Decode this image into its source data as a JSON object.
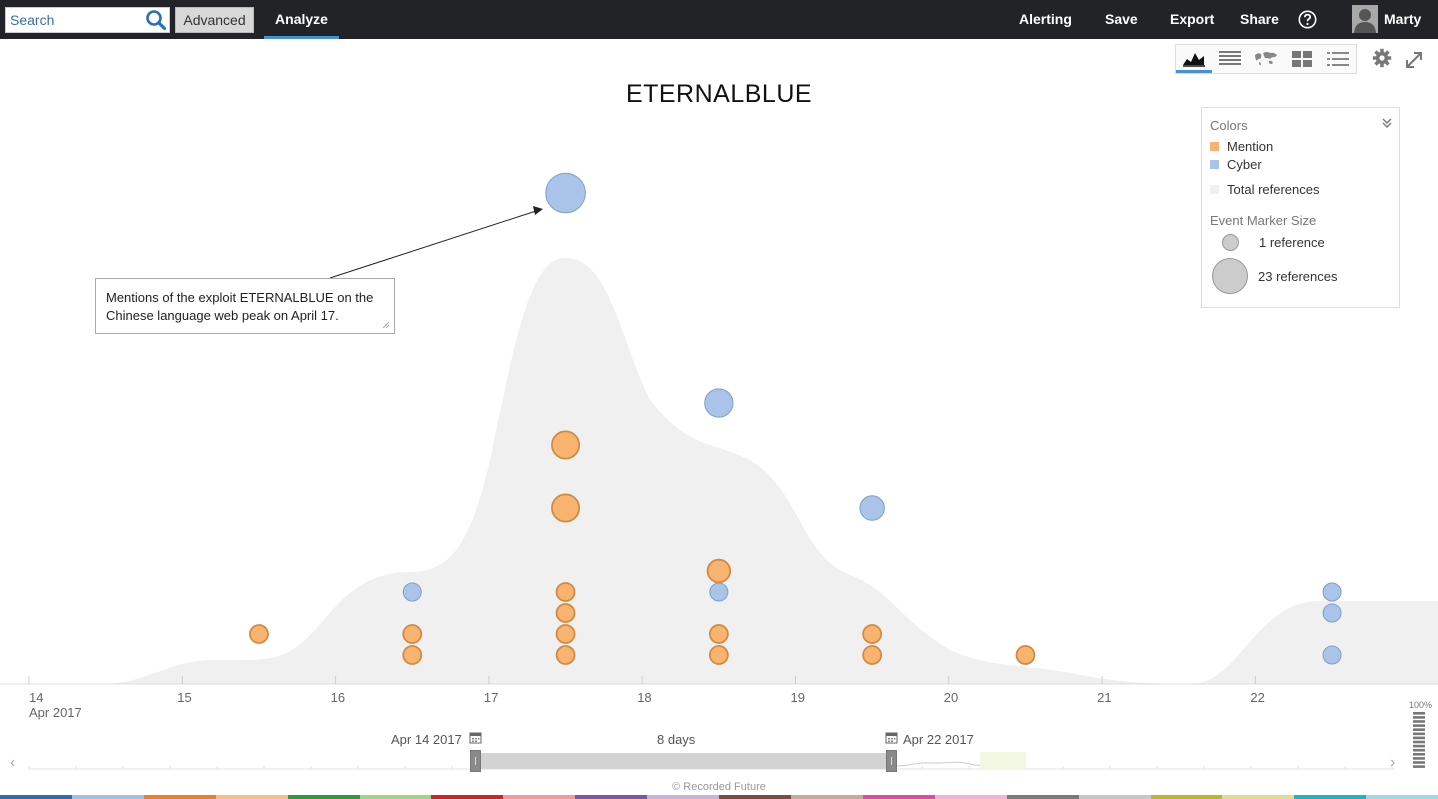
{
  "topbar": {
    "search_placeholder": "Search",
    "advanced_label": "Advanced",
    "analyze_label": "Analyze",
    "nav": [
      "Alerting",
      "Save",
      "Export",
      "Share"
    ],
    "user_name": "Marty"
  },
  "chart_title": "ETERNALBLUE",
  "legend": {
    "colors_header": "Colors",
    "items": [
      {
        "label": "Mention",
        "color": "#f8b46f"
      },
      {
        "label": "Cyber",
        "color": "#a9c4e8"
      },
      {
        "label": "Total references",
        "color": "#f0f0f0"
      }
    ],
    "size_header": "Event Marker Size",
    "size_items": [
      {
        "label": "1 reference",
        "refs": 1
      },
      {
        "label": "23 references",
        "refs": 23
      }
    ]
  },
  "annotation": {
    "text": "Mentions of the exploit ETERNALBLUE on the Chinese language web peak on April 17."
  },
  "timeline": {
    "year_label": "Apr 2017",
    "ticks": [
      "14",
      "15",
      "16",
      "17",
      "18",
      "19",
      "20",
      "21",
      "22"
    ],
    "range_start": "Apr 14 2017",
    "range_end": "Apr 22 2017",
    "duration": "8 days",
    "zoom_label": "100%"
  },
  "copyright": "© Recorded Future",
  "colors": {
    "mention": "#f8b46f",
    "cyber": "#a9c4e8",
    "total_area": "#f0f0f0",
    "accent": "#4a8fd6",
    "topbar": "#222326"
  },
  "chart_data": {
    "type": "scatter",
    "title": "ETERNALBLUE",
    "x_unit": "day of April 2017",
    "xlim": [
      14,
      23.1
    ],
    "events": [
      {
        "day": 15.5,
        "type": "Mention",
        "row": 2
      },
      {
        "day": 16.5,
        "type": "Mention",
        "row": 1
      },
      {
        "day": 16.5,
        "type": "Mention",
        "row": 2
      },
      {
        "day": 16.5,
        "type": "Cyber",
        "row": 4
      },
      {
        "day": 17.5,
        "type": "Mention",
        "row": 1
      },
      {
        "day": 17.5,
        "type": "Mention",
        "row": 2
      },
      {
        "day": 17.5,
        "type": "Mention",
        "row": 3
      },
      {
        "day": 17.5,
        "type": "Mention",
        "row": 4
      },
      {
        "day": 17.5,
        "type": "Mention",
        "row": 8
      },
      {
        "day": 17.5,
        "type": "Mention",
        "row": 11
      },
      {
        "day": 17.5,
        "type": "Cyber",
        "row": 23
      },
      {
        "day": 18.5,
        "type": "Mention",
        "row": 1
      },
      {
        "day": 18.5,
        "type": "Mention",
        "row": 2
      },
      {
        "day": 18.5,
        "type": "Cyber",
        "row": 4
      },
      {
        "day": 18.5,
        "type": "Mention",
        "row": 5
      },
      {
        "day": 18.5,
        "type": "Cyber",
        "row": 13
      },
      {
        "day": 19.5,
        "type": "Mention",
        "row": 1
      },
      {
        "day": 19.5,
        "type": "Mention",
        "row": 2
      },
      {
        "day": 19.5,
        "type": "Cyber",
        "row": 8
      },
      {
        "day": 20.5,
        "type": "Mention",
        "row": 1
      },
      {
        "day": 22.5,
        "type": "Cyber",
        "row": 1
      },
      {
        "day": 22.5,
        "type": "Cyber",
        "row": 3
      },
      {
        "day": 22.5,
        "type": "Cyber",
        "row": 4
      }
    ]
  }
}
